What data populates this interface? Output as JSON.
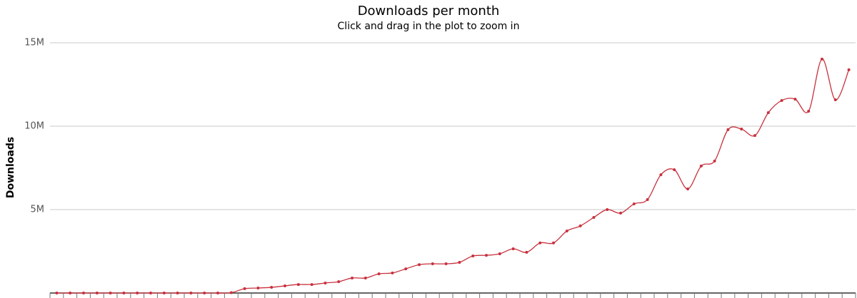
{
  "chart_data": {
    "type": "line",
    "title": "Downloads per month",
    "subtitle": "Click and drag in the plot to zoom in",
    "y_label": "Downloads",
    "categories": [
      null,
      null,
      null,
      null,
      null,
      null,
      null,
      null,
      null,
      null,
      null,
      null,
      null,
      null,
      null,
      null,
      null,
      null,
      null,
      null,
      null,
      null,
      null,
      null,
      null,
      null,
      null,
      null,
      null,
      null,
      null,
      null,
      null,
      null,
      null,
      null,
      null,
      null,
      null,
      null,
      null,
      null,
      null,
      null,
      null,
      null,
      null,
      null,
      null,
      null,
      null,
      null,
      null,
      null,
      null,
      null,
      null,
      null,
      null,
      null
    ],
    "series": [
      {
        "name": "Downloads",
        "color": "#c8313e",
        "values": [
          0,
          0,
          0,
          0,
          0,
          0,
          0,
          0,
          0,
          0,
          0,
          0,
          0,
          20000,
          260000,
          300000,
          340000,
          430000,
          510000,
          510000,
          600000,
          680000,
          900000,
          900000,
          1150000,
          1200000,
          1450000,
          1700000,
          1750000,
          1750000,
          1840000,
          2220000,
          2260000,
          2350000,
          2650000,
          2440000,
          3000000,
          3000000,
          3720000,
          4020000,
          4530000,
          5000000,
          4790000,
          5340000,
          5600000,
          7090000,
          7390000,
          6240000,
          7610000,
          7910000,
          9790000,
          9830000,
          9440000,
          10810000,
          11540000,
          11620000,
          10900000,
          14020000,
          11580000,
          13380000
        ]
      }
    ],
    "ylim": [
      0,
      15000000
    ],
    "yticks": [
      {
        "value": 5000000,
        "label": "5M"
      },
      {
        "value": 10000000,
        "label": "10M"
      },
      {
        "value": 15000000,
        "label": "15M"
      }
    ],
    "grid": true
  }
}
